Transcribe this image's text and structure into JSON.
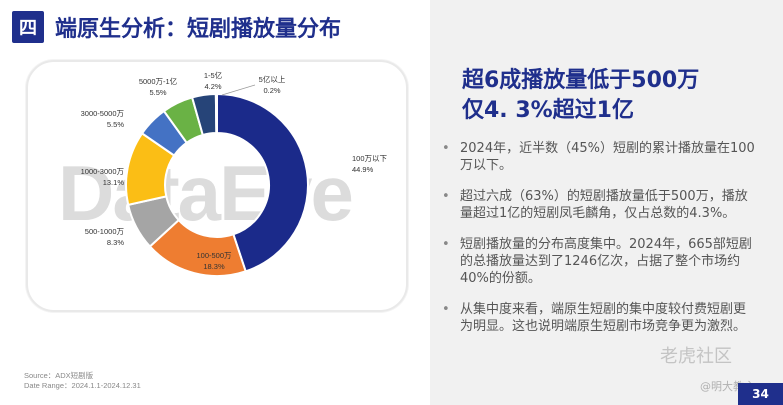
{
  "header": {
    "section_number": "四",
    "title": "端原生分析：短剧播放量分布"
  },
  "chart_data": {
    "type": "pie",
    "title": "",
    "categories": [
      "100万以下",
      "100-500万",
      "500-1000万",
      "1000-3000万",
      "3000-5000万",
      "5000万-1亿",
      "1-5亿",
      "5亿以上"
    ],
    "values": [
      44.9,
      18.3,
      8.3,
      13.1,
      5.5,
      5.5,
      4.2,
      0.2
    ],
    "value_labels": [
      "44.9%",
      "18.3%",
      "8.3%",
      "13.1%",
      "5.5%",
      "5.5%",
      "4.2%",
      "0.2%"
    ],
    "colors": [
      "#1b2a8a",
      "#ee7d31",
      "#a5a5a5",
      "#fbbe15",
      "#4472c4",
      "#6ab245",
      "#264478",
      "#9e480e"
    ],
    "legend": "none",
    "watermark": "DataEye"
  },
  "source": {
    "source_line": "Source：ADX短剧版",
    "date_line": "Date Range：2024.1.1-2024.12.31"
  },
  "panel": {
    "headline_line1": "超6成播放量低于500万",
    "headline_line2": "仅4. 3%超过1亿",
    "bullets": [
      "2024年，近半数（45%）短剧的累计播放量在100万以下。",
      "超过六成（63%）的短剧播放量低于500万，播放量超过1亿的短剧凤毛麟角，仅占总数的4.3%。",
      "短剧播放量的分布高度集中。2024年，665部短剧的总播放量达到了1246亿次，占据了整个市场约40%的份额。",
      "从集中度来看，端原生短剧的集中度较付费短剧更为明显。这也说明端原生短剧市场竞争更为激烈。"
    ]
  },
  "page_number": "34",
  "watermarks": {
    "logo_text": "老虎社区",
    "handle": "@明大教主"
  }
}
